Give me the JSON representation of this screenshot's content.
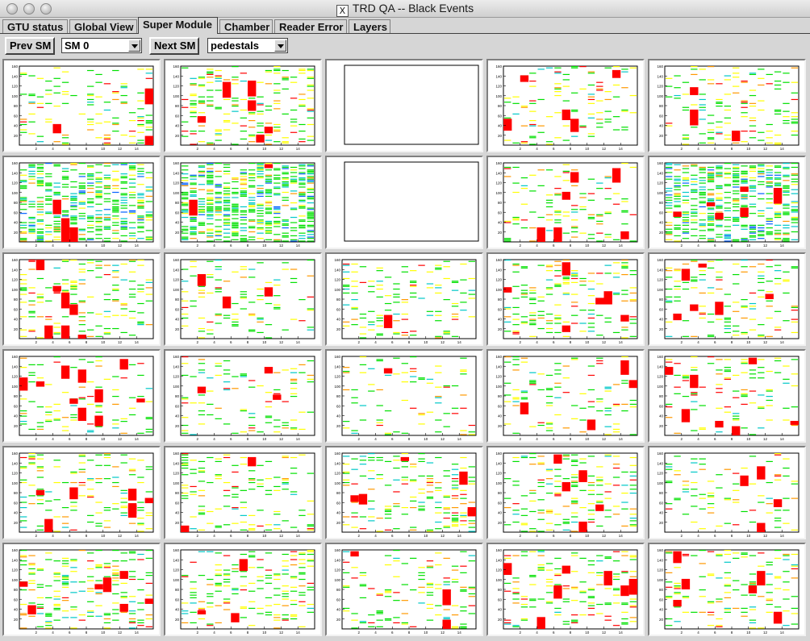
{
  "window": {
    "title": "TRD QA -- Black Events",
    "x_badge": "X"
  },
  "tabs": [
    {
      "label": "GTU status",
      "active": false
    },
    {
      "label": "Global View",
      "active": false
    },
    {
      "label": "Super Module",
      "active": true
    },
    {
      "label": "Chamber",
      "active": false
    },
    {
      "label": "Reader Error",
      "active": false
    },
    {
      "label": "Layers",
      "active": false
    }
  ],
  "toolbar": {
    "prev_label": "Prev SM",
    "sm_select": "SM 0",
    "next_label": "Next SM",
    "mode_select": "pedestals"
  },
  "plots": {
    "rows": 6,
    "cols": 5,
    "y_ticks": [
      "20",
      "40",
      "60",
      "80",
      "100",
      "120",
      "140",
      "160"
    ],
    "x_ticks": [
      "2",
      "4",
      "6",
      "8",
      "10",
      "12",
      "14"
    ],
    "colors": {
      "red": "#ff0000",
      "yellow": "#ffff00",
      "green": "#00e000",
      "cyan": "#00c8c8",
      "blue": "#0060ff",
      "orange": "#ff9900"
    },
    "cells": [
      {
        "density": 0.25,
        "blobs": 3,
        "empty": false
      },
      {
        "density": 0.35,
        "blobs": 6,
        "empty": false
      },
      {
        "density": 0,
        "blobs": 0,
        "empty": true
      },
      {
        "density": 0.25,
        "blobs": 5,
        "empty": false
      },
      {
        "density": 0.28,
        "blobs": 3,
        "empty": false
      },
      {
        "density": 0.8,
        "blobs": 4,
        "empty": false
      },
      {
        "density": 0.95,
        "blobs": 2,
        "empty": false
      },
      {
        "density": 0,
        "blobs": 0,
        "empty": true
      },
      {
        "density": 0.3,
        "blobs": 6,
        "empty": false
      },
      {
        "density": 0.9,
        "blobs": 6,
        "empty": false
      },
      {
        "density": 0.35,
        "blobs": 7,
        "empty": false
      },
      {
        "density": 0.22,
        "blobs": 3,
        "empty": false
      },
      {
        "density": 0.3,
        "blobs": 1,
        "empty": false
      },
      {
        "density": 0.3,
        "blobs": 6,
        "empty": false
      },
      {
        "density": 0.28,
        "blobs": 6,
        "empty": false
      },
      {
        "density": 0.25,
        "blobs": 10,
        "empty": false
      },
      {
        "density": 0.2,
        "blobs": 3,
        "empty": false
      },
      {
        "density": 0.2,
        "blobs": 1,
        "empty": false
      },
      {
        "density": 0.2,
        "blobs": 4,
        "empty": false
      },
      {
        "density": 0.22,
        "blobs": 7,
        "empty": false
      },
      {
        "density": 0.28,
        "blobs": 8,
        "empty": false
      },
      {
        "density": 0.28,
        "blobs": 2,
        "empty": false
      },
      {
        "density": 0.35,
        "blobs": 6,
        "empty": false
      },
      {
        "density": 0.3,
        "blobs": 6,
        "empty": false
      },
      {
        "density": 0.25,
        "blobs": 4,
        "empty": false
      },
      {
        "density": 0.35,
        "blobs": 7,
        "empty": false
      },
      {
        "density": 0.35,
        "blobs": 3,
        "empty": false
      },
      {
        "density": 0.3,
        "blobs": 3,
        "empty": false
      },
      {
        "density": 0.3,
        "blobs": 8,
        "empty": false
      },
      {
        "density": 0.3,
        "blobs": 6,
        "empty": false
      }
    ]
  }
}
